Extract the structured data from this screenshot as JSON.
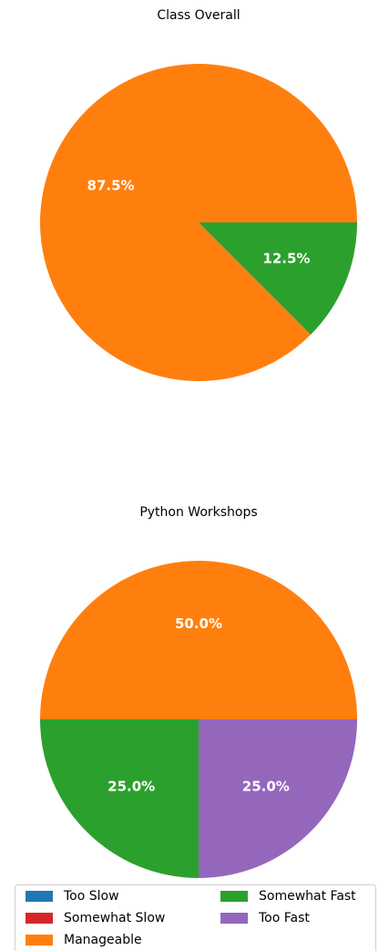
{
  "chart_data": [
    {
      "type": "pie",
      "title": "Class Overall",
      "categories": [
        "Manageable",
        "Somewhat Fast"
      ],
      "values": [
        87.5,
        12.5
      ],
      "value_labels": [
        "87.5%",
        "12.5%"
      ],
      "colors": [
        "#ff7f0e",
        "#2ca02c"
      ]
    },
    {
      "type": "pie",
      "title": "Python Workshops",
      "categories": [
        "Manageable",
        "Somewhat Fast",
        "Too Fast"
      ],
      "values": [
        50.0,
        25.0,
        25.0
      ],
      "value_labels": [
        "50.0%",
        "25.0%",
        "25.0%"
      ],
      "colors": [
        "#ff7f0e",
        "#2ca02c",
        "#9467bd"
      ]
    }
  ],
  "legend": {
    "entries": [
      {
        "name": "Too Slow",
        "color": "#1f77b4"
      },
      {
        "name": "Somewhat Slow",
        "color": "#d62728"
      },
      {
        "name": "Manageable",
        "color": "#ff7f0e"
      },
      {
        "name": "Somewhat Fast",
        "color": "#2ca02c"
      },
      {
        "name": "Too Fast",
        "color": "#9467bd"
      }
    ]
  }
}
